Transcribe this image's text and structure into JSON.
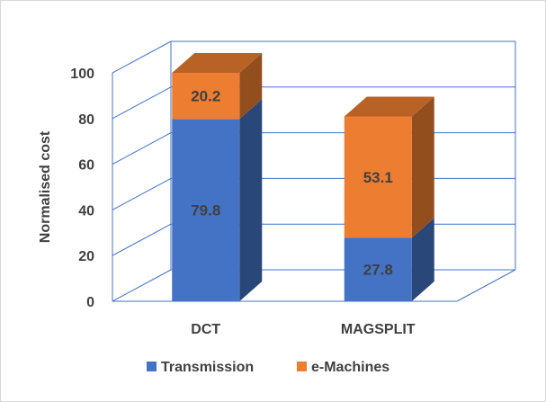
{
  "chart_data": {
    "type": "bar",
    "stacked": true,
    "three_d": true,
    "categories": [
      "DCT",
      "MAGSPLIT"
    ],
    "series": [
      {
        "name": "Transmission",
        "values": [
          79.8,
          27.8
        ],
        "color": "#4472c4",
        "labels": [
          "79.8",
          "27.8"
        ]
      },
      {
        "name": "e-Machines",
        "values": [
          20.2,
          53.1
        ],
        "color": "#ed7d31",
        "labels": [
          "20.2",
          "53.1"
        ]
      }
    ],
    "ylabel": "Normalised cost",
    "ylim": [
      0,
      100
    ],
    "yticks": [
      "0",
      "20",
      "40",
      "60",
      "80",
      "100"
    ],
    "grid": true,
    "grid_color": "#4472c4",
    "legend_position": "bottom"
  }
}
